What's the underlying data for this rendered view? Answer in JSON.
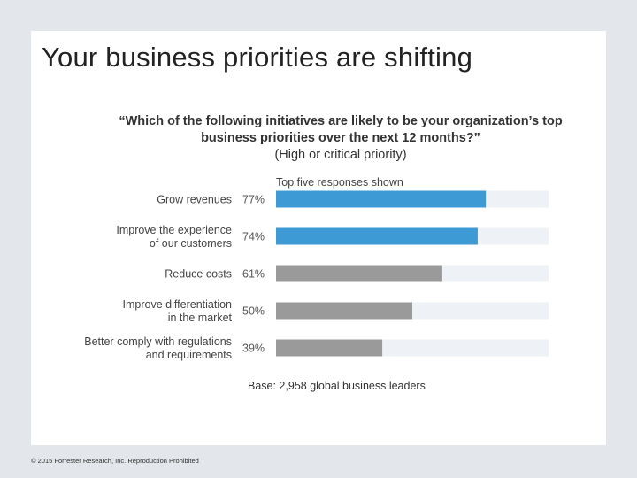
{
  "slide": {
    "title": "Your business priorities are shifting",
    "question_main": "“Which of the following initiatives are likely to be your organization’s top business priorities over the next 12 months?”",
    "question_sub": "(High or critical priority)",
    "note": "Top five responses shown",
    "base": "Base: 2,958 global business leaders",
    "footer": "© 2015 Forrester Research, Inc. Reproduction Prohibited"
  },
  "chart_data": {
    "type": "bar",
    "orientation": "horizontal",
    "categories": [
      [
        "Grow revenues"
      ],
      [
        "Improve the experience",
        "of our customers"
      ],
      [
        "Reduce costs"
      ],
      [
        "Improve differentiation",
        "in the market"
      ],
      [
        "Better comply with regulations",
        "and requirements"
      ]
    ],
    "values": [
      77,
      74,
      61,
      50,
      39
    ],
    "value_labels": [
      "77%",
      "74%",
      "61%",
      "50%",
      "39%"
    ],
    "xlim": [
      0,
      100
    ],
    "bar_colors": [
      "#3d9ad4",
      "#3d9ad4",
      "#9a9a9a",
      "#9a9a9a",
      "#9a9a9a"
    ],
    "track_color": "#eef2f6"
  }
}
